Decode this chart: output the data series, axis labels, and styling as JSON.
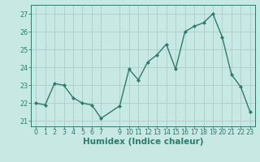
{
  "x": [
    0,
    1,
    2,
    3,
    4,
    5,
    6,
    7,
    9,
    10,
    11,
    12,
    13,
    14,
    15,
    16,
    17,
    18,
    19,
    20,
    21,
    22,
    23
  ],
  "y": [
    22.0,
    21.9,
    23.1,
    23.0,
    22.3,
    22.0,
    21.9,
    21.15,
    21.85,
    23.9,
    23.3,
    24.3,
    24.7,
    25.3,
    23.9,
    26.0,
    26.3,
    26.5,
    27.0,
    25.7,
    23.6,
    22.9,
    21.5
  ],
  "xticks": [
    0,
    1,
    2,
    3,
    4,
    5,
    6,
    7,
    9,
    10,
    11,
    12,
    13,
    14,
    15,
    16,
    17,
    18,
    19,
    20,
    21,
    22,
    23
  ],
  "yticks": [
    21,
    22,
    23,
    24,
    25,
    26,
    27
  ],
  "ylim": [
    20.7,
    27.5
  ],
  "xlim": [
    -0.5,
    23.5
  ],
  "xlabel": "Humidex (Indice chaleur)",
  "line_color": "#2d7b6e",
  "marker": "D",
  "marker_size": 2.0,
  "linewidth": 1.0,
  "bg_color": "#c8e8e4",
  "grid_color": "#aacfcc",
  "tick_fontsize": 5.8,
  "xlabel_fontsize": 7.5,
  "xlabel_color": "#2d7b6e"
}
